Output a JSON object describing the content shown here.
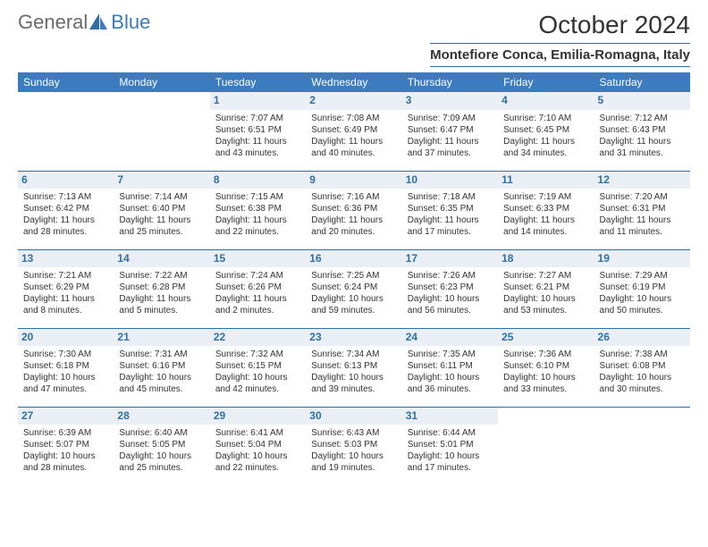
{
  "brand": {
    "text1": "General",
    "text2": "Blue",
    "accent_color": "#3b7bbf",
    "logo_fill": "#2f6fa8"
  },
  "header": {
    "title": "October 2024",
    "subtitle": "Montefiore Conca, Emilia-Romagna, Italy"
  },
  "colors": {
    "header_bg": "#3b7bbf",
    "header_text": "#ffffff",
    "daynum_bg": "#e9eff5",
    "daynum_color": "#2f6fa8",
    "rule_color": "#2f6fa8",
    "body_text": "#333333"
  },
  "weekdays": [
    "Sunday",
    "Monday",
    "Tuesday",
    "Wednesday",
    "Thursday",
    "Friday",
    "Saturday"
  ],
  "weeks": [
    [
      {
        "empty": true
      },
      {
        "empty": true
      },
      {
        "day": "1",
        "sunrise": "Sunrise: 7:07 AM",
        "sunset": "Sunset: 6:51 PM",
        "daylight": "Daylight: 11 hours and 43 minutes."
      },
      {
        "day": "2",
        "sunrise": "Sunrise: 7:08 AM",
        "sunset": "Sunset: 6:49 PM",
        "daylight": "Daylight: 11 hours and 40 minutes."
      },
      {
        "day": "3",
        "sunrise": "Sunrise: 7:09 AM",
        "sunset": "Sunset: 6:47 PM",
        "daylight": "Daylight: 11 hours and 37 minutes."
      },
      {
        "day": "4",
        "sunrise": "Sunrise: 7:10 AM",
        "sunset": "Sunset: 6:45 PM",
        "daylight": "Daylight: 11 hours and 34 minutes."
      },
      {
        "day": "5",
        "sunrise": "Sunrise: 7:12 AM",
        "sunset": "Sunset: 6:43 PM",
        "daylight": "Daylight: 11 hours and 31 minutes."
      }
    ],
    [
      {
        "day": "6",
        "sunrise": "Sunrise: 7:13 AM",
        "sunset": "Sunset: 6:42 PM",
        "daylight": "Daylight: 11 hours and 28 minutes."
      },
      {
        "day": "7",
        "sunrise": "Sunrise: 7:14 AM",
        "sunset": "Sunset: 6:40 PM",
        "daylight": "Daylight: 11 hours and 25 minutes."
      },
      {
        "day": "8",
        "sunrise": "Sunrise: 7:15 AM",
        "sunset": "Sunset: 6:38 PM",
        "daylight": "Daylight: 11 hours and 22 minutes."
      },
      {
        "day": "9",
        "sunrise": "Sunrise: 7:16 AM",
        "sunset": "Sunset: 6:36 PM",
        "daylight": "Daylight: 11 hours and 20 minutes."
      },
      {
        "day": "10",
        "sunrise": "Sunrise: 7:18 AM",
        "sunset": "Sunset: 6:35 PM",
        "daylight": "Daylight: 11 hours and 17 minutes."
      },
      {
        "day": "11",
        "sunrise": "Sunrise: 7:19 AM",
        "sunset": "Sunset: 6:33 PM",
        "daylight": "Daylight: 11 hours and 14 minutes."
      },
      {
        "day": "12",
        "sunrise": "Sunrise: 7:20 AM",
        "sunset": "Sunset: 6:31 PM",
        "daylight": "Daylight: 11 hours and 11 minutes."
      }
    ],
    [
      {
        "day": "13",
        "sunrise": "Sunrise: 7:21 AM",
        "sunset": "Sunset: 6:29 PM",
        "daylight": "Daylight: 11 hours and 8 minutes."
      },
      {
        "day": "14",
        "sunrise": "Sunrise: 7:22 AM",
        "sunset": "Sunset: 6:28 PM",
        "daylight": "Daylight: 11 hours and 5 minutes."
      },
      {
        "day": "15",
        "sunrise": "Sunrise: 7:24 AM",
        "sunset": "Sunset: 6:26 PM",
        "daylight": "Daylight: 11 hours and 2 minutes."
      },
      {
        "day": "16",
        "sunrise": "Sunrise: 7:25 AM",
        "sunset": "Sunset: 6:24 PM",
        "daylight": "Daylight: 10 hours and 59 minutes."
      },
      {
        "day": "17",
        "sunrise": "Sunrise: 7:26 AM",
        "sunset": "Sunset: 6:23 PM",
        "daylight": "Daylight: 10 hours and 56 minutes."
      },
      {
        "day": "18",
        "sunrise": "Sunrise: 7:27 AM",
        "sunset": "Sunset: 6:21 PM",
        "daylight": "Daylight: 10 hours and 53 minutes."
      },
      {
        "day": "19",
        "sunrise": "Sunrise: 7:29 AM",
        "sunset": "Sunset: 6:19 PM",
        "daylight": "Daylight: 10 hours and 50 minutes."
      }
    ],
    [
      {
        "day": "20",
        "sunrise": "Sunrise: 7:30 AM",
        "sunset": "Sunset: 6:18 PM",
        "daylight": "Daylight: 10 hours and 47 minutes."
      },
      {
        "day": "21",
        "sunrise": "Sunrise: 7:31 AM",
        "sunset": "Sunset: 6:16 PM",
        "daylight": "Daylight: 10 hours and 45 minutes."
      },
      {
        "day": "22",
        "sunrise": "Sunrise: 7:32 AM",
        "sunset": "Sunset: 6:15 PM",
        "daylight": "Daylight: 10 hours and 42 minutes."
      },
      {
        "day": "23",
        "sunrise": "Sunrise: 7:34 AM",
        "sunset": "Sunset: 6:13 PM",
        "daylight": "Daylight: 10 hours and 39 minutes."
      },
      {
        "day": "24",
        "sunrise": "Sunrise: 7:35 AM",
        "sunset": "Sunset: 6:11 PM",
        "daylight": "Daylight: 10 hours and 36 minutes."
      },
      {
        "day": "25",
        "sunrise": "Sunrise: 7:36 AM",
        "sunset": "Sunset: 6:10 PM",
        "daylight": "Daylight: 10 hours and 33 minutes."
      },
      {
        "day": "26",
        "sunrise": "Sunrise: 7:38 AM",
        "sunset": "Sunset: 6:08 PM",
        "daylight": "Daylight: 10 hours and 30 minutes."
      }
    ],
    [
      {
        "day": "27",
        "sunrise": "Sunrise: 6:39 AM",
        "sunset": "Sunset: 5:07 PM",
        "daylight": "Daylight: 10 hours and 28 minutes."
      },
      {
        "day": "28",
        "sunrise": "Sunrise: 6:40 AM",
        "sunset": "Sunset: 5:05 PM",
        "daylight": "Daylight: 10 hours and 25 minutes."
      },
      {
        "day": "29",
        "sunrise": "Sunrise: 6:41 AM",
        "sunset": "Sunset: 5:04 PM",
        "daylight": "Daylight: 10 hours and 22 minutes."
      },
      {
        "day": "30",
        "sunrise": "Sunrise: 6:43 AM",
        "sunset": "Sunset: 5:03 PM",
        "daylight": "Daylight: 10 hours and 19 minutes."
      },
      {
        "day": "31",
        "sunrise": "Sunrise: 6:44 AM",
        "sunset": "Sunset: 5:01 PM",
        "daylight": "Daylight: 10 hours and 17 minutes."
      },
      {
        "empty": true
      },
      {
        "empty": true
      }
    ]
  ]
}
